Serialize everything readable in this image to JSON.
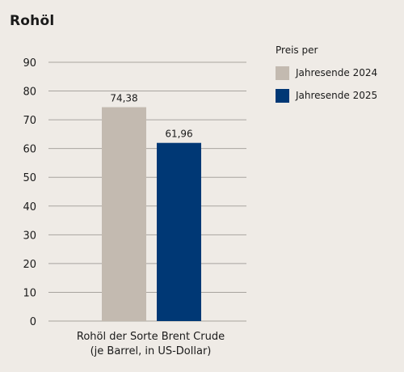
{
  "colors": {
    "background": "#efebe6",
    "grid": "#a8a49f",
    "series_2024": "#c3bab0",
    "series_2025": "#003875"
  },
  "chart_data": {
    "type": "bar",
    "title": "Rohöl",
    "categories": [
      "Rohöl der Sorte Brent Crude\n(je Barrel, in US-Dollar)"
    ],
    "category_lines": [
      "Rohöl der Sorte Brent Crude",
      "(je Barrel, in US-Dollar)"
    ],
    "legend_title": "Preis per",
    "legend_position": "top-right",
    "series": [
      {
        "name": "Jahresende 2024",
        "values": [
          74.38
        ],
        "labels": [
          "74,38"
        ],
        "color": "#c3bab0"
      },
      {
        "name": "Jahresende 2025",
        "values": [
          61.96
        ],
        "labels": [
          "61,96"
        ],
        "color": "#003875"
      }
    ],
    "ylim": [
      0,
      90
    ],
    "yticks": [
      0,
      10,
      20,
      30,
      40,
      50,
      60,
      70,
      80,
      90
    ],
    "grid": true
  }
}
